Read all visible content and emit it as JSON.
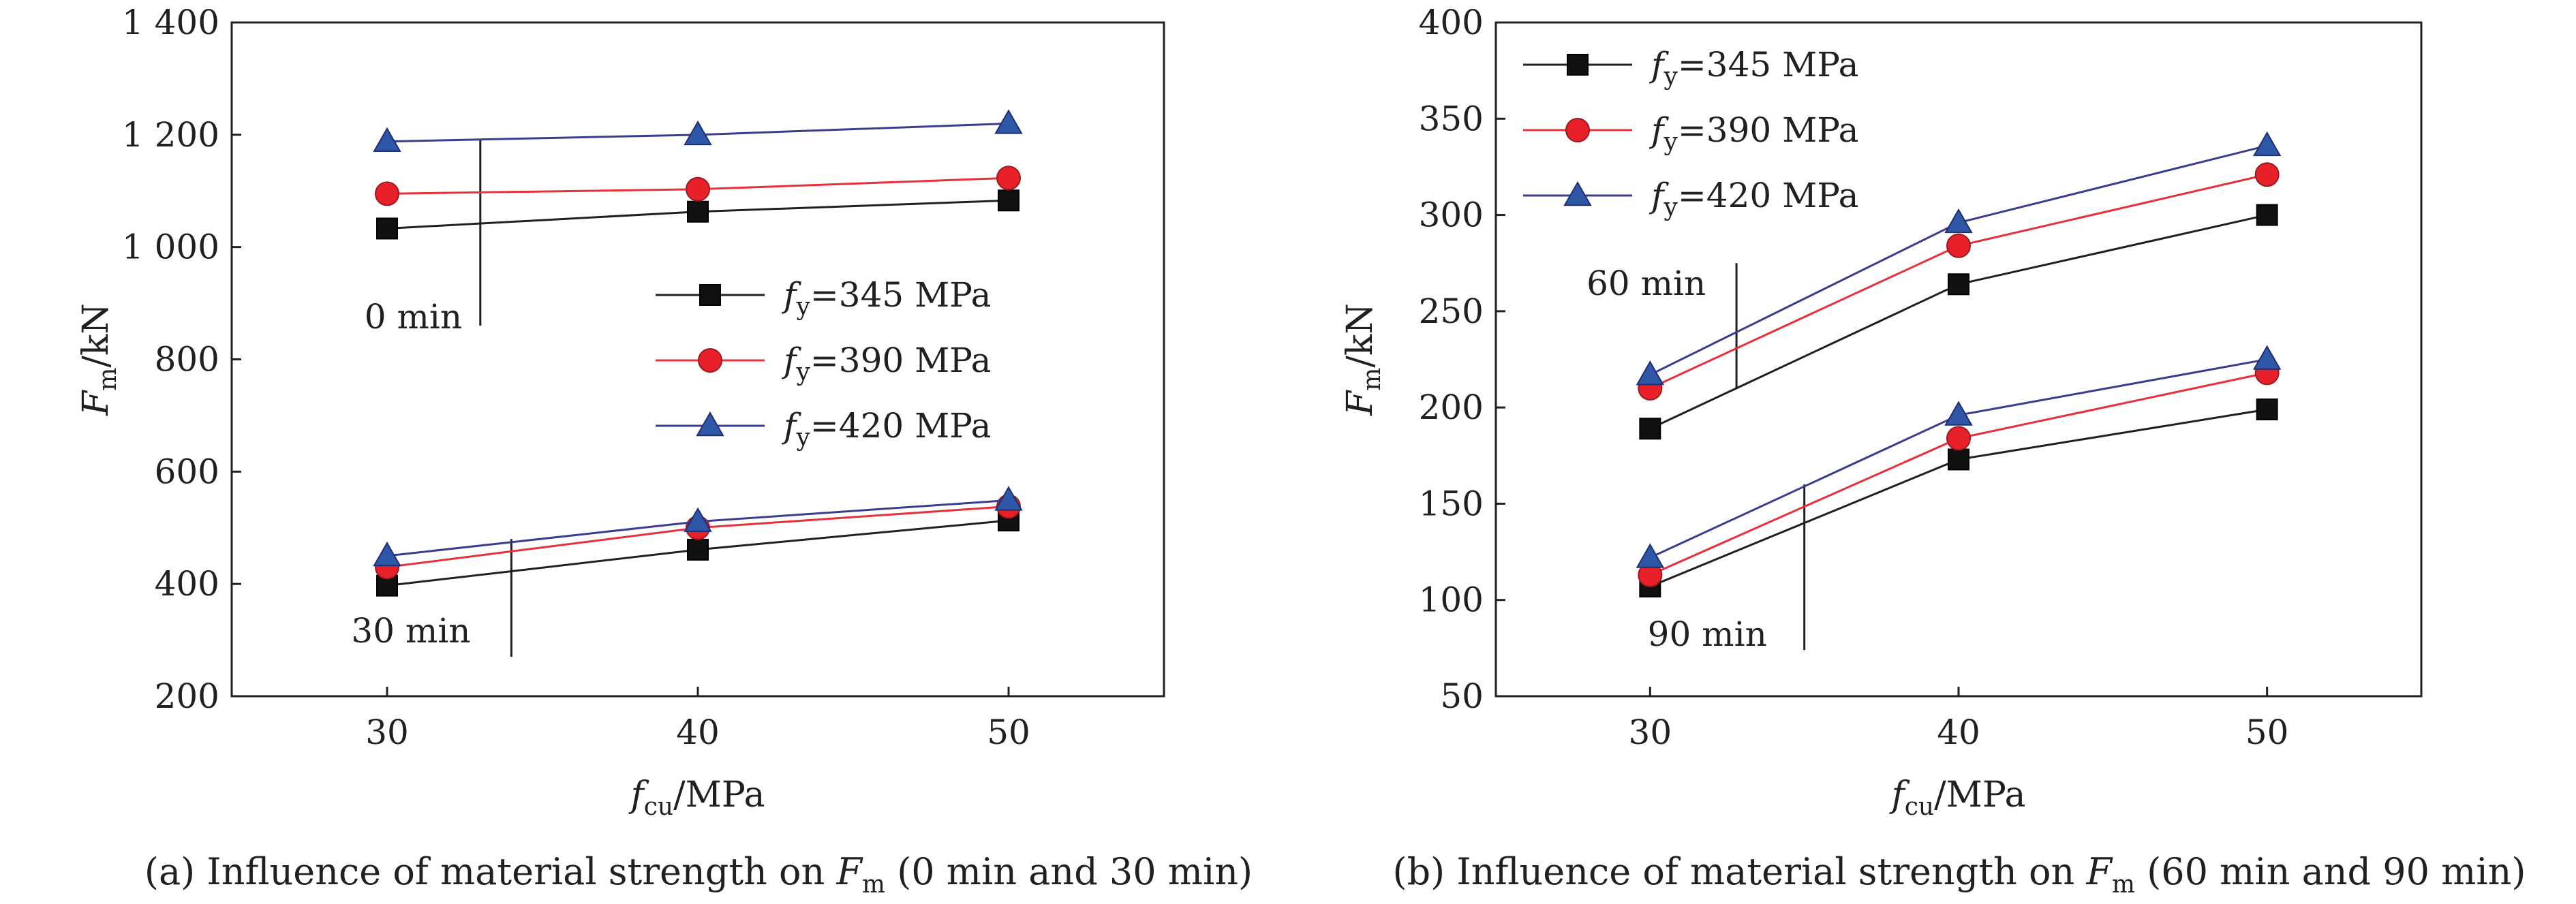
{
  "chart_data": [
    {
      "type": "line",
      "caption": {
        "text": "(a) Influence of material strength on ",
        "sym": "F",
        "sub": "m",
        "tail": " (0 min and 30 min)"
      },
      "xlabel": {
        "sym": "f",
        "sub": "cu",
        "tail": "/MPa"
      },
      "ylabel": {
        "sym": "F",
        "sub": "m",
        "tail": "/kN"
      },
      "xlim": [
        25,
        55
      ],
      "ylim": [
        200,
        1400
      ],
      "x_ticks": [
        30,
        40,
        50
      ],
      "y_ticks": [
        200,
        400,
        600,
        800,
        1000,
        1200,
        1400
      ],
      "y_tick_labels": [
        "200",
        "400",
        "600",
        "800",
        "1 000",
        "1 200",
        "1 400"
      ],
      "x": [
        30,
        40,
        50
      ],
      "legend_position": "center-right",
      "series": [
        {
          "name": "fy=345 MPa",
          "sym": "f",
          "sub": "y",
          "value_text": "=345 MPa",
          "group": "0 min",
          "marker": "square",
          "line_color": "#231f20",
          "marker_color": "#111111",
          "values": [
            1033,
            1063,
            1083
          ]
        },
        {
          "name": "fy=390 MPa",
          "sym": "f",
          "sub": "y",
          "value_text": "=390 MPa",
          "group": "0 min",
          "marker": "circle",
          "line_color": "#e8303a",
          "marker_color": "#e8202a",
          "values": [
            1095,
            1103,
            1123
          ]
        },
        {
          "name": "fy=420 MPa",
          "sym": "f",
          "sub": "y",
          "value_text": "=420 MPa",
          "group": "0 min",
          "marker": "triangle",
          "line_color": "#3a3d8f",
          "marker_color": "#2e57a8",
          "values": [
            1188,
            1200,
            1220
          ]
        },
        {
          "name": "fy=345 MPa",
          "sym": "f",
          "sub": "y",
          "value_text": "=345 MPa",
          "group": "30 min",
          "marker": "square",
          "line_color": "#231f20",
          "marker_color": "#111111",
          "values": [
            397,
            461,
            513
          ]
        },
        {
          "name": "fy=390 MPa",
          "sym": "f",
          "sub": "y",
          "value_text": "=390 MPa",
          "group": "30 min",
          "marker": "circle",
          "line_color": "#e8303a",
          "marker_color": "#e8202a",
          "values": [
            430,
            500,
            538
          ]
        },
        {
          "name": "fy=420 MPa",
          "sym": "f",
          "sub": "y",
          "value_text": "=420 MPa",
          "group": "30 min",
          "marker": "triangle",
          "line_color": "#3a3d8f",
          "marker_color": "#2e57a8",
          "values": [
            450,
            511,
            549
          ]
        }
      ],
      "annotations": [
        {
          "text": "0 min",
          "x": 33,
          "y_from": 860,
          "y_to": 1193
        },
        {
          "text": "30 min",
          "x": 34,
          "y_from": 270,
          "y_to": 480
        }
      ]
    },
    {
      "type": "line",
      "caption": {
        "text": "(b) Influence of material strength on ",
        "sym": "F",
        "sub": "m",
        "tail": " (60 min and 90 min)"
      },
      "xlabel": {
        "sym": "f",
        "sub": "cu",
        "tail": "/MPa"
      },
      "ylabel": {
        "sym": "F",
        "sub": "m",
        "tail": "/kN"
      },
      "xlim": [
        25,
        55
      ],
      "ylim": [
        50,
        400
      ],
      "x_ticks": [
        30,
        40,
        50
      ],
      "y_ticks": [
        50,
        100,
        150,
        200,
        250,
        300,
        350,
        400
      ],
      "y_tick_labels": [
        "50",
        "100",
        "150",
        "200",
        "250",
        "300",
        "350",
        "400"
      ],
      "x": [
        30,
        40,
        50
      ],
      "legend_position": "top-left",
      "series": [
        {
          "name": "fy=345 MPa",
          "sym": "f",
          "sub": "y",
          "value_text": "=345 MPa",
          "group": "60 min",
          "marker": "square",
          "line_color": "#231f20",
          "marker_color": "#111111",
          "values": [
            189,
            264,
            300
          ]
        },
        {
          "name": "fy=390 MPa",
          "sym": "f",
          "sub": "y",
          "value_text": "=390 MPa",
          "group": "60 min",
          "marker": "circle",
          "line_color": "#e8303a",
          "marker_color": "#e8202a",
          "values": [
            210,
            284,
            321
          ]
        },
        {
          "name": "fy=420 MPa",
          "sym": "f",
          "sub": "y",
          "value_text": "=420 MPa",
          "group": "60 min",
          "marker": "triangle",
          "line_color": "#3a3d8f",
          "marker_color": "#2e57a8",
          "values": [
            217,
            296,
            336
          ]
        },
        {
          "name": "fy=345 MPa",
          "sym": "f",
          "sub": "y",
          "value_text": "=345 MPa",
          "group": "90 min",
          "marker": "square",
          "line_color": "#231f20",
          "marker_color": "#111111",
          "values": [
            107,
            173,
            199
          ]
        },
        {
          "name": "fy=390 MPa",
          "sym": "f",
          "sub": "y",
          "value_text": "=390 MPa",
          "group": "90 min",
          "marker": "circle",
          "line_color": "#e8303a",
          "marker_color": "#e8202a",
          "values": [
            113,
            184,
            218
          ]
        },
        {
          "name": "fy=420 MPa",
          "sym": "f",
          "sub": "y",
          "value_text": "=420 MPa",
          "group": "90 min",
          "marker": "triangle",
          "line_color": "#3a3d8f",
          "marker_color": "#2e57a8",
          "values": [
            122,
            196,
            225
          ]
        }
      ],
      "annotations": [
        {
          "text": "60 min",
          "x": 32.8,
          "y_from": 210,
          "y_to": 275
        },
        {
          "text": "90 min",
          "x": 35,
          "y_from": 74,
          "y_to": 160
        }
      ]
    }
  ]
}
